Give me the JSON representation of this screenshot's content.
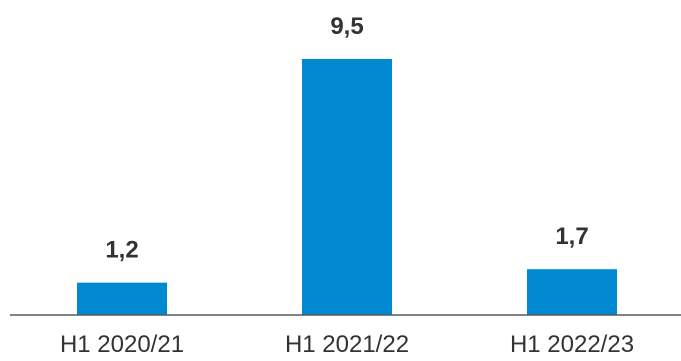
{
  "chart_data": {
    "type": "bar",
    "categories": [
      "H1 2020/21",
      "H1 2021/22",
      "H1 2022/23"
    ],
    "values": [
      1.2,
      9.5,
      1.7
    ],
    "value_labels": [
      "1,2",
      "9,5",
      "1,7"
    ],
    "bar_color": "#0088D1",
    "axis_color": "#595959",
    "text_color": "#333333",
    "ylim": [
      0,
      9.5
    ],
    "grid": false,
    "legend": "none"
  }
}
